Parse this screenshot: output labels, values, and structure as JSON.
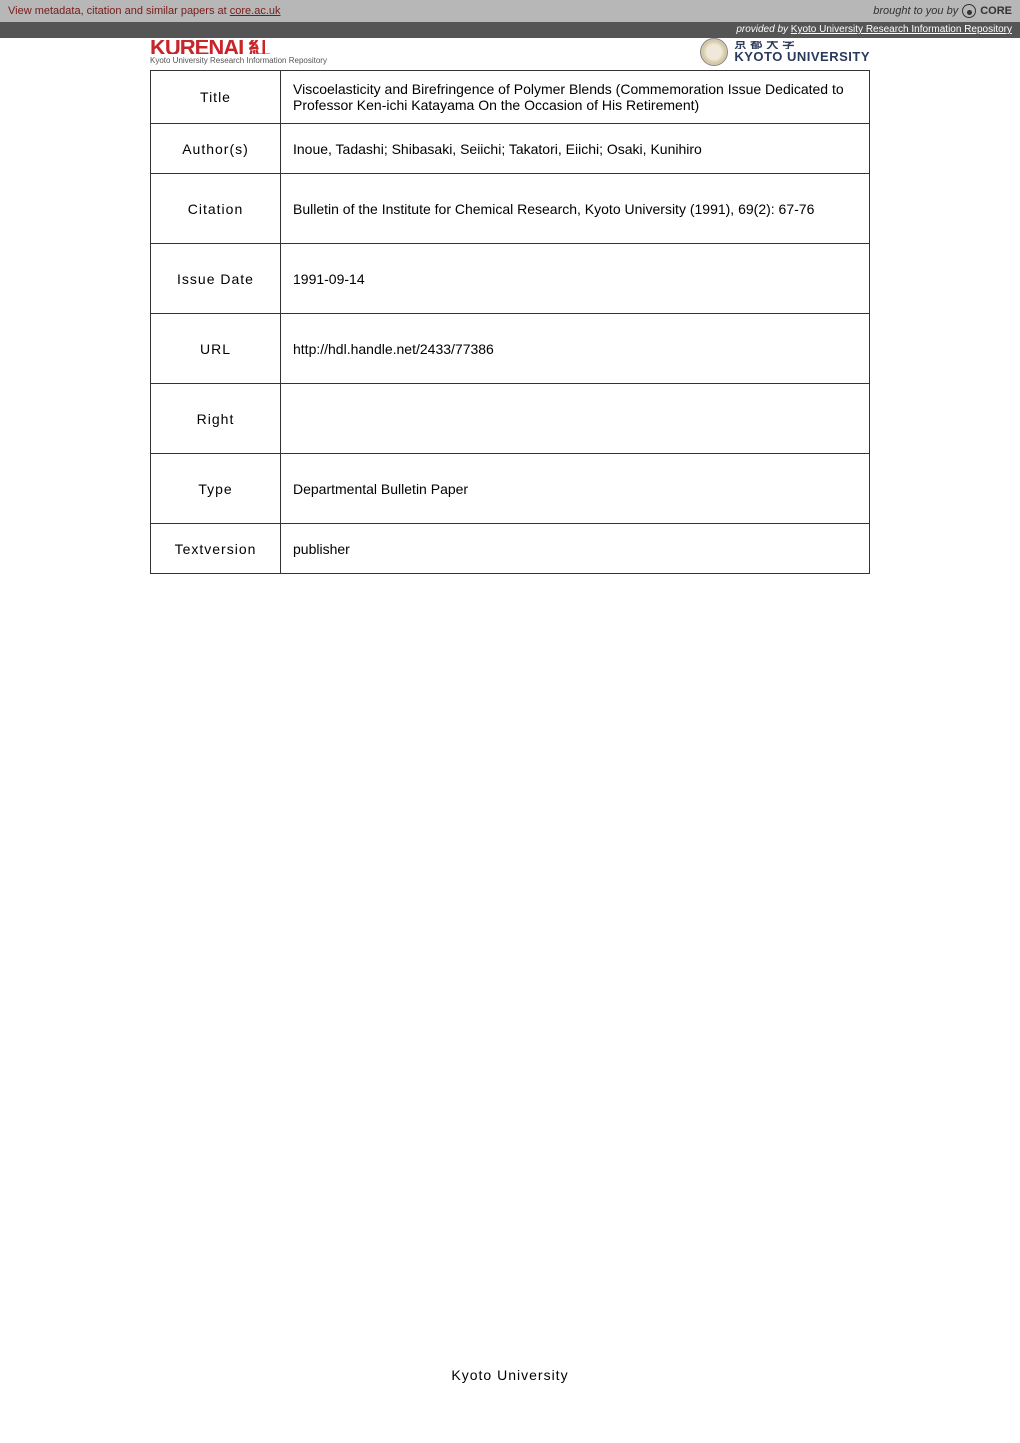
{
  "topbar": {
    "left_prefix": "View metadata, citation and similar papers at ",
    "left_link": "core.ac.uk",
    "right_prefix": "brought to you by",
    "core": "CORE"
  },
  "provided": {
    "prefix": "provided by ",
    "source": "Kyoto University Research Information Repository"
  },
  "header": {
    "kurenai_main": "KURENAI 紅",
    "kurenai_sub": "Kyoto University Research Information Repository",
    "kyoto_jp": "京都大学",
    "kyoto_en": "KYOTO UNIVERSITY"
  },
  "table": {
    "rows": [
      {
        "label": "Title",
        "value": "Viscoelasticity and Birefringence of Polymer Blends (Commemoration Issue Dedicated to Professor Ken-ichi Katayama On the Occasion of His Retirement)"
      },
      {
        "label": "Author(s)",
        "value": "Inoue, Tadashi; Shibasaki, Seiichi; Takatori, Eiichi; Osaki, Kunihiro"
      },
      {
        "label": "Citation",
        "value": "Bulletin of the Institute for Chemical Research, Kyoto University (1991), 69(2): 67-76"
      },
      {
        "label": "Issue Date",
        "value": "1991-09-14"
      },
      {
        "label": "URL",
        "value": "http://hdl.handle.net/2433/77386"
      },
      {
        "label": "Right",
        "value": ""
      },
      {
        "label": "Type",
        "value": "Departmental Bulletin Paper"
      },
      {
        "label": "Textversion",
        "value": "publisher"
      }
    ]
  },
  "footer": "Kyoto University"
}
